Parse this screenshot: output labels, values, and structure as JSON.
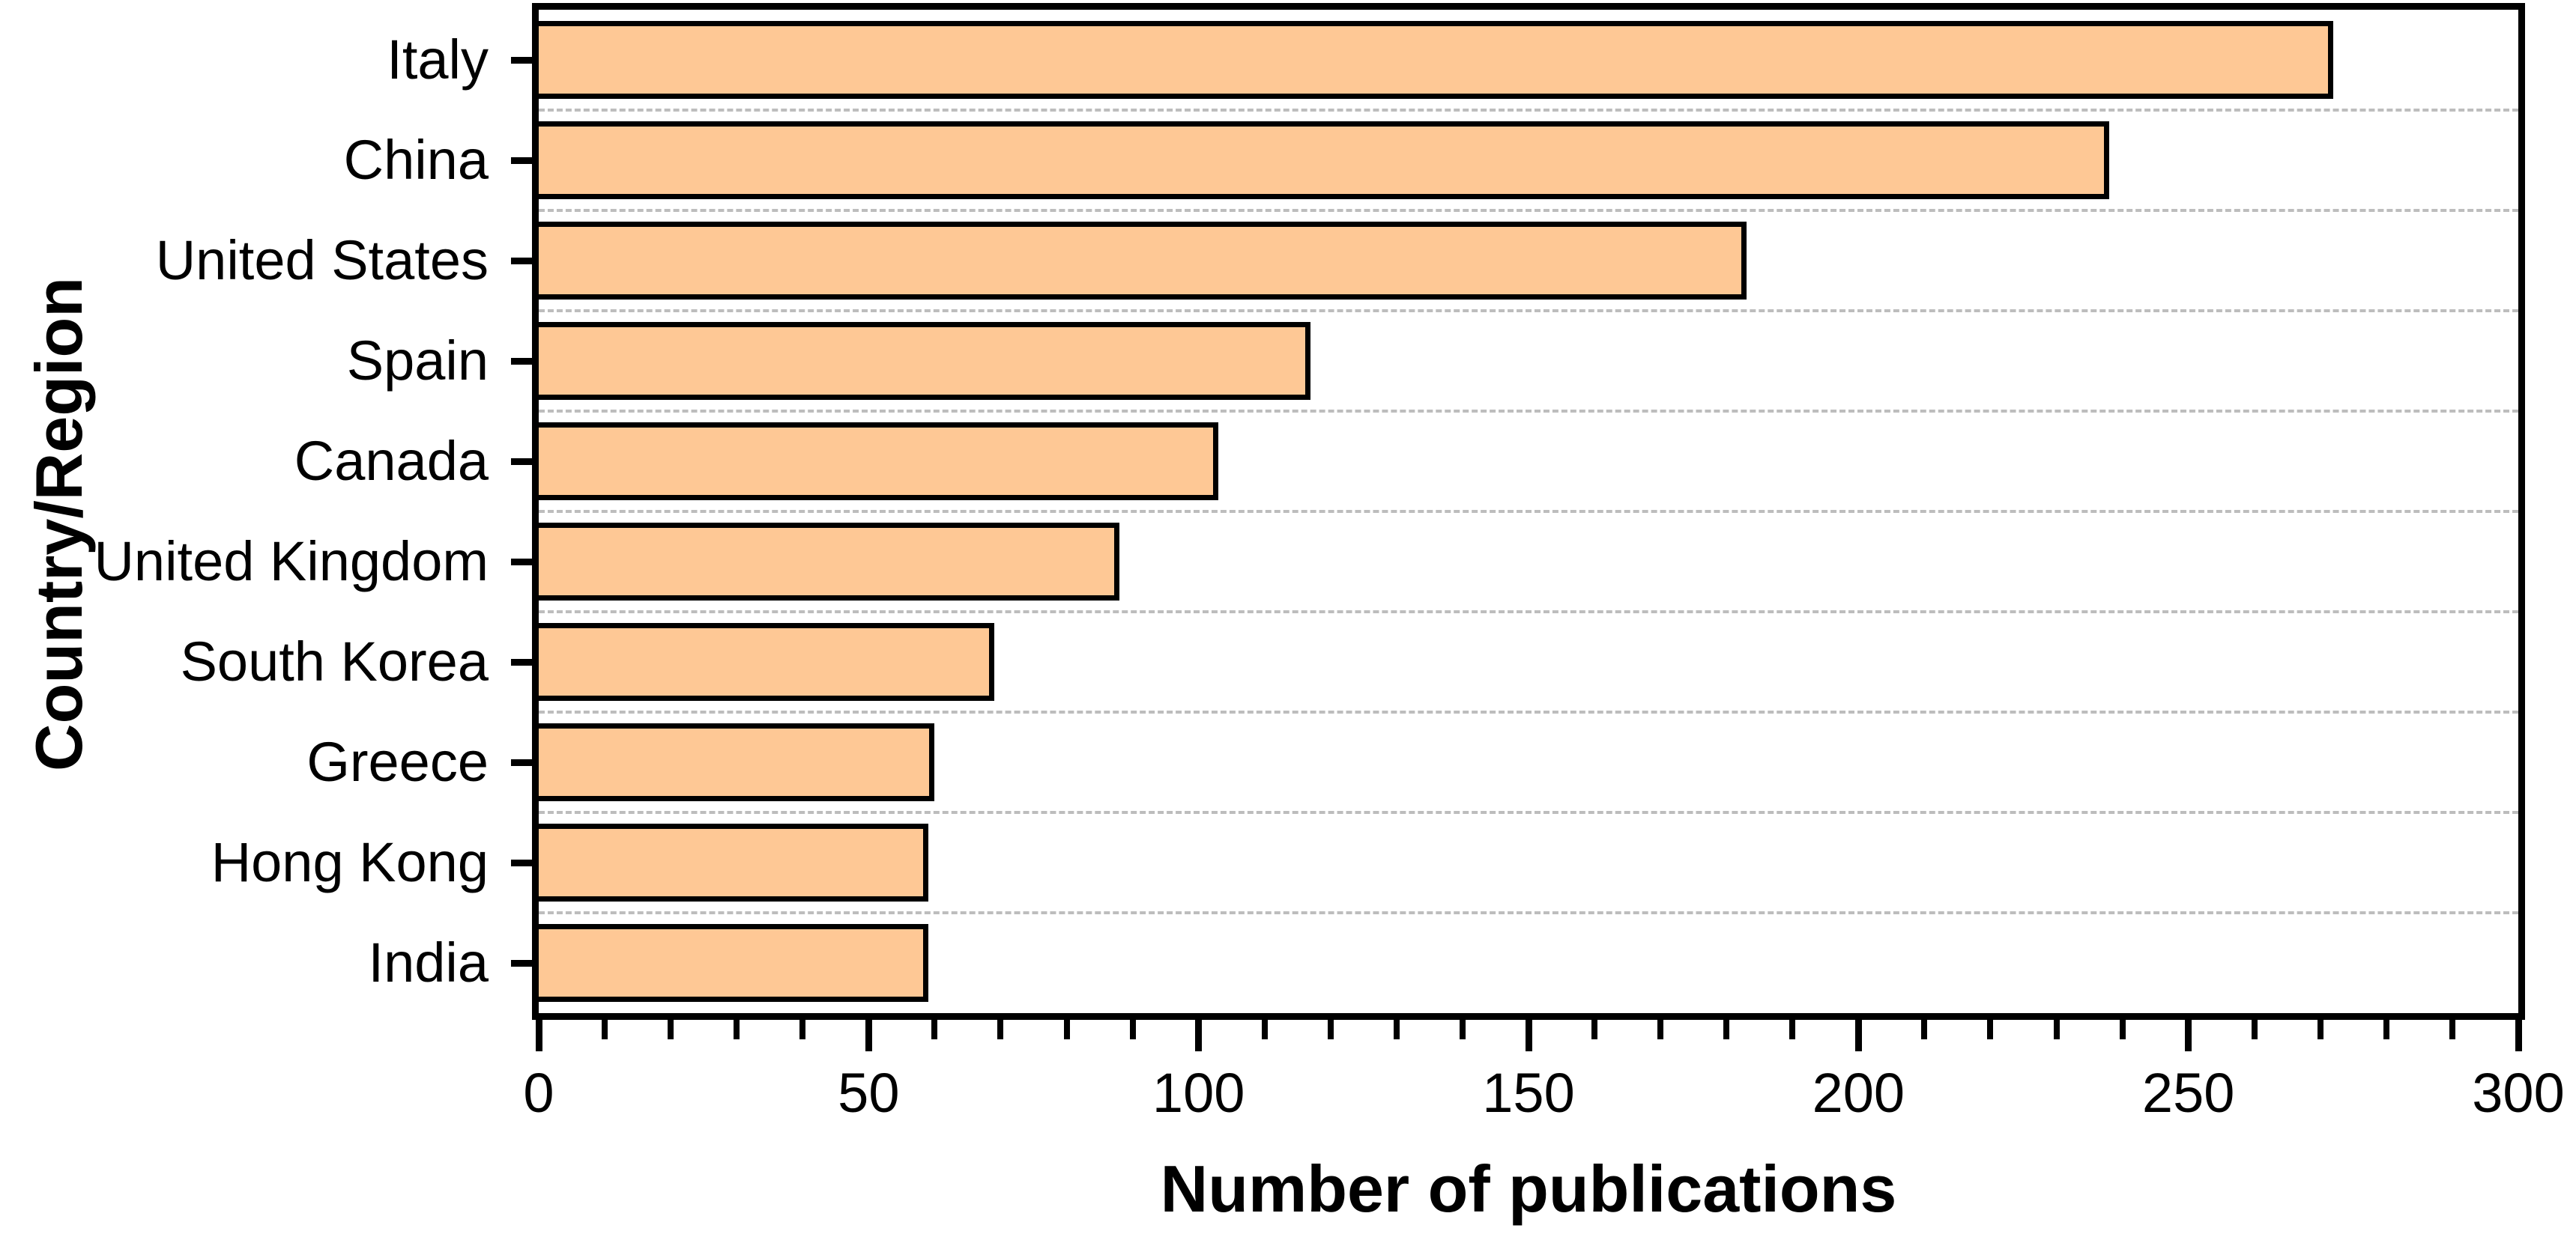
{
  "chart_data": {
    "type": "bar",
    "orientation": "horizontal",
    "title": "",
    "xlabel": "Number of publications",
    "ylabel": "Country/Region",
    "categories": [
      "Italy",
      "China",
      "United States",
      "Spain",
      "Canada",
      "United Kingdom",
      "South Korea",
      "Greece",
      "Hong Kong",
      "India"
    ],
    "values": [
      272,
      238,
      183,
      117,
      103,
      88,
      69,
      60,
      59,
      59
    ],
    "xlim": [
      0,
      300
    ],
    "x_major_ticks": [
      0,
      50,
      100,
      150,
      200,
      250,
      300
    ],
    "x_minor_tick_step": 10,
    "grid": "horizontal dashed lines between category rows",
    "legend": "none",
    "bar_fill_color": "#FEC895",
    "bar_border_color": "#000000",
    "gridline_color": "#BDBDBD",
    "axis_color": "#000000",
    "background_color": "#FFFFFF"
  }
}
